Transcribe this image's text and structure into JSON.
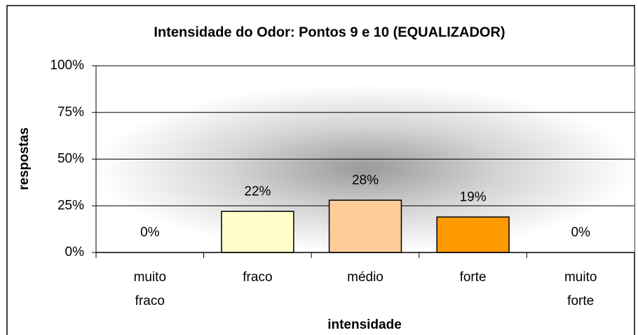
{
  "chart_data": {
    "type": "bar",
    "title": "Intensidade do Odor: Pontos 9 e 10 (EQUALIZADOR)",
    "x_label": "intensidade",
    "y_label": "respostas",
    "categories": [
      "muito fraco",
      "fraco",
      "médio",
      "forte",
      "muito forte"
    ],
    "values": [
      0,
      22,
      28,
      19,
      0
    ],
    "value_labels": [
      "0%",
      "22%",
      "28%",
      "19%",
      "0%"
    ],
    "colors": [
      null,
      "#FFFFCC",
      "#FFCC99",
      "#FF9900",
      null
    ],
    "ylim": [
      0,
      100
    ],
    "yticks": [
      {
        "value": 0,
        "label": "0%"
      },
      {
        "value": 25,
        "label": "25%"
      },
      {
        "value": 50,
        "label": "50%"
      },
      {
        "value": 75,
        "label": "75%"
      },
      {
        "value": 100,
        "label": "100%"
      }
    ],
    "grid": true
  }
}
